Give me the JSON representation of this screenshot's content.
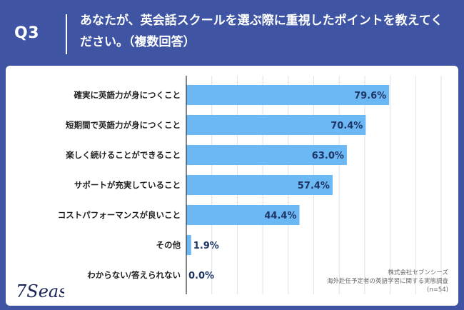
{
  "header": {
    "q_label": "Q3",
    "question": "あなたが、英会話スクールを選ぶ際に重視したポイントを教えてください。（複数回答）"
  },
  "chart_data": {
    "type": "bar",
    "orientation": "horizontal",
    "categories": [
      "確実に英語力が身につくこと",
      "短期間で英語力が身につくこと",
      "楽しく続けることができること",
      "サポートが充実していること",
      "コストパフォーマンスが良いこと",
      "その他",
      "わからない/答えられない"
    ],
    "values": [
      79.6,
      70.4,
      63.0,
      57.4,
      44.4,
      1.9,
      0.0
    ],
    "value_labels": [
      "79.6%",
      "70.4%",
      "63.0%",
      "57.4%",
      "44.4%",
      "1.9%",
      "0.0%"
    ],
    "xlim": [
      0,
      100
    ],
    "bar_color": "#6cb8f5",
    "grid_color": "#dde3ea",
    "gridlines": true
  },
  "source": {
    "line1": "株式会社セブンシーズ",
    "line2": "海外赴任予定者の英語学習に関する実態調査",
    "line3": "(n=54)"
  },
  "logo": {
    "text": "7Seas"
  },
  "colors": {
    "background": "#3f55a3",
    "card": "#ffffff",
    "label": "#222222",
    "value_label": "#1f3566"
  }
}
